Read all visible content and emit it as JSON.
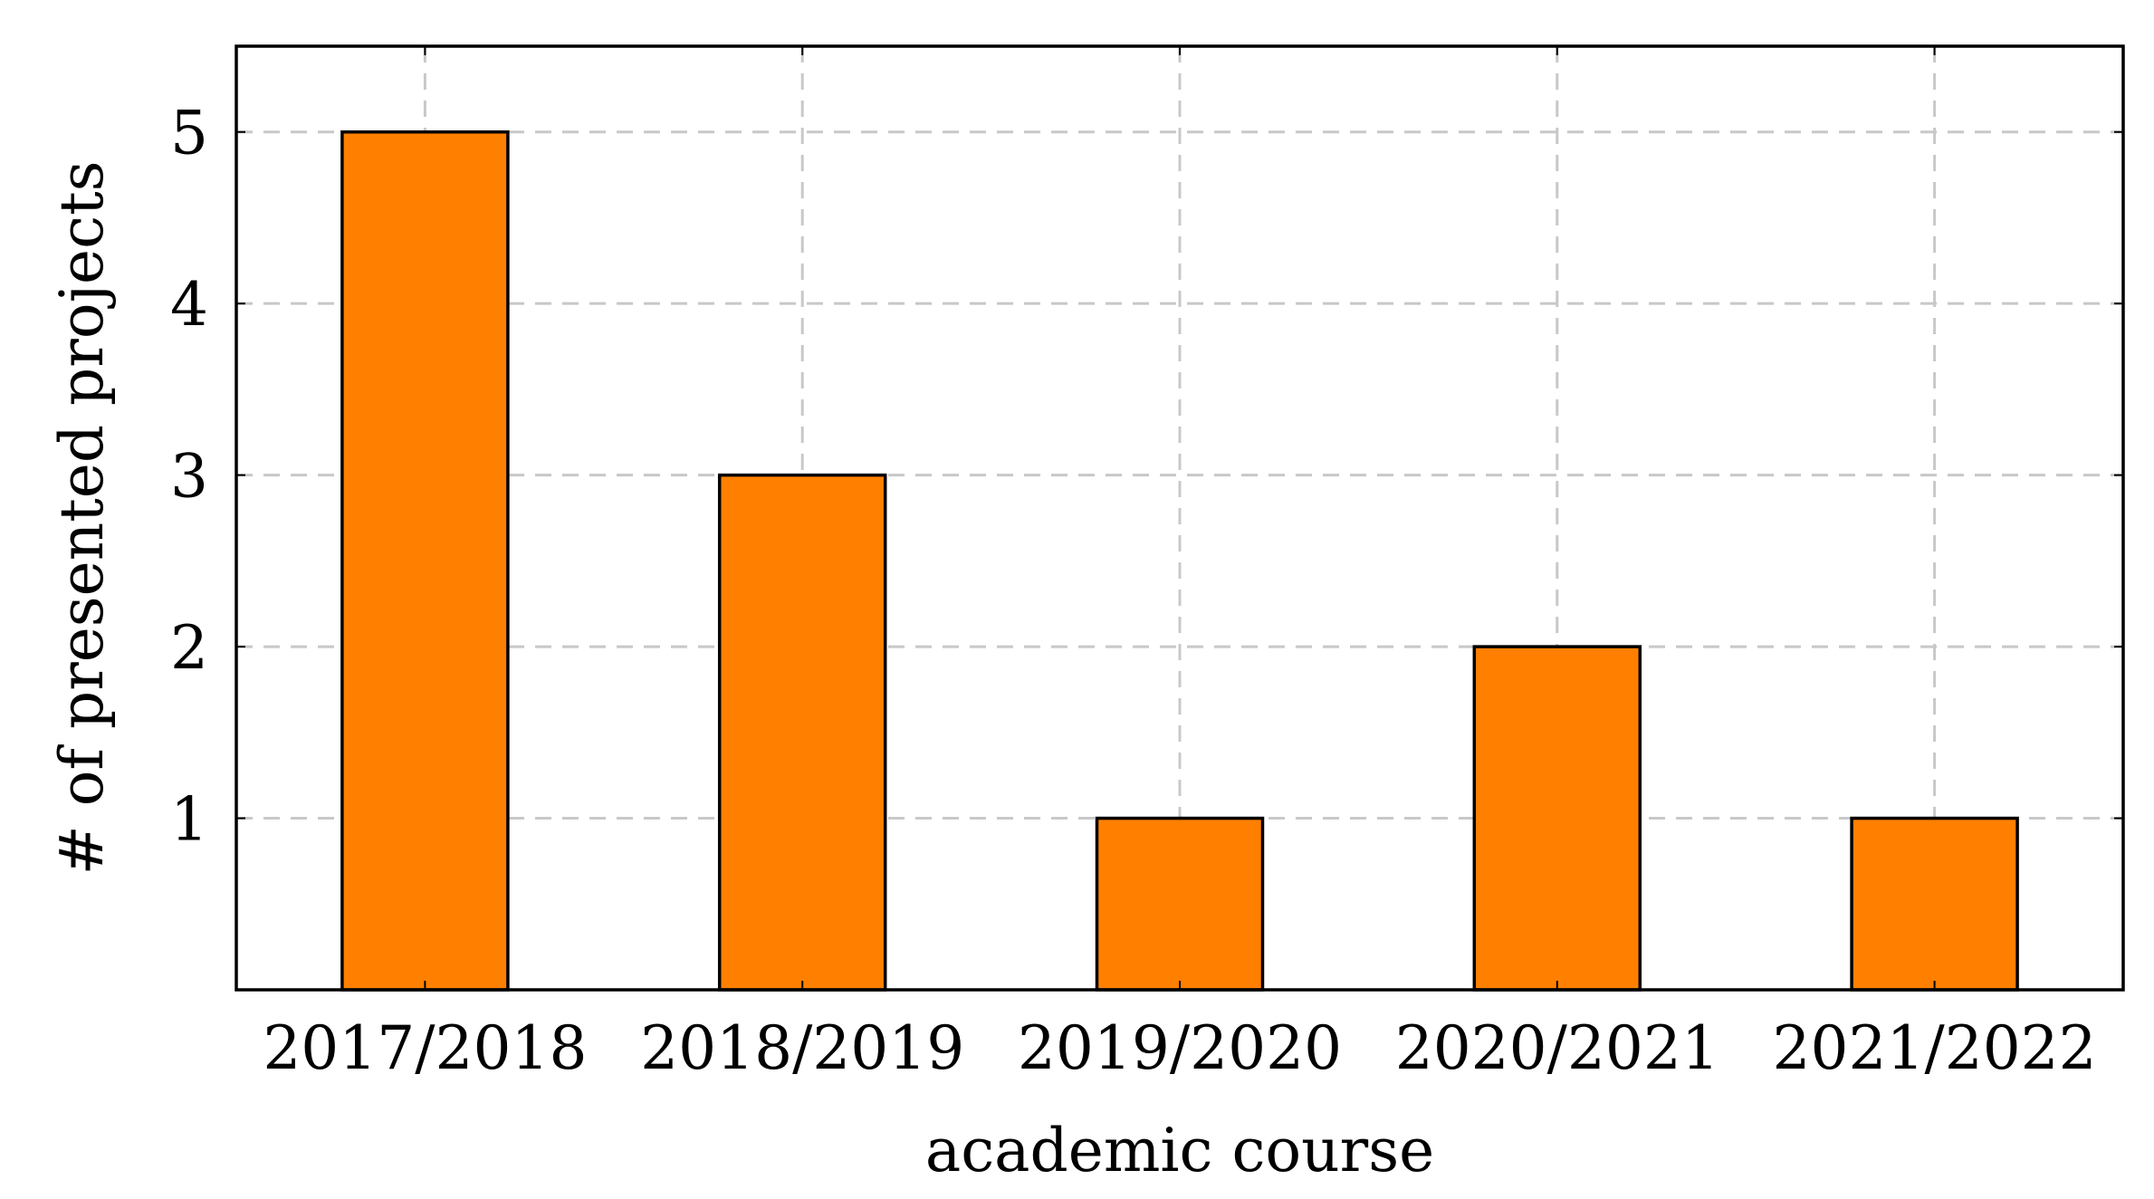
{
  "chart_data": {
    "type": "bar",
    "categories": [
      "2017/2018",
      "2018/2019",
      "2019/2020",
      "2020/2021",
      "2021/2022"
    ],
    "values": [
      5,
      3,
      1,
      2,
      1
    ],
    "title": "",
    "xlabel": "academic course",
    "ylabel": "# of presented projects",
    "ylim": [
      0,
      5.5
    ],
    "yticks": [
      1,
      2,
      3,
      4,
      5
    ],
    "grid": true,
    "bar_color": "#ff8000",
    "bar_edge_color": "#000000",
    "grid_color": "#c8c8c8"
  }
}
